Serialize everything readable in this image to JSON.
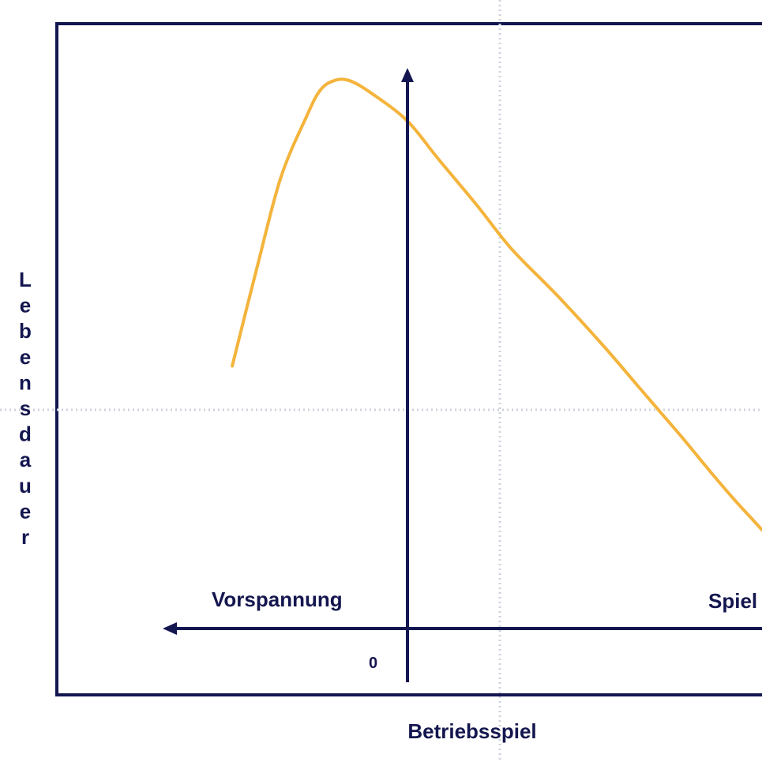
{
  "chart_data": {
    "type": "line",
    "title": "",
    "xlabel": "Betriebsspiel",
    "ylabel": "Lebensdauer",
    "left_label": "Vorspannung",
    "right_label": "Spiel",
    "origin_label": "0",
    "xlim": [
      -1.0,
      1.54
    ],
    "ylim": [
      0,
      1
    ],
    "grid": true,
    "series": [
      {
        "color": "#f4b43c",
        "x": [
          -0.76,
          -0.65,
          -0.55,
          -0.44,
          -0.38,
          -0.32,
          -0.25,
          -0.15,
          0.0,
          0.13,
          0.3,
          0.45,
          0.65,
          0.85,
          1.0,
          1.1,
          1.2,
          1.32,
          1.42,
          1.5,
          1.54
        ],
        "y": [
          0.49,
          0.64,
          0.77,
          0.86,
          0.9,
          0.915,
          0.915,
          0.895,
          0.855,
          0.8,
          0.73,
          0.665,
          0.595,
          0.52,
          0.46,
          0.42,
          0.38,
          0.33,
          0.29,
          0.26,
          0.245
        ]
      }
    ]
  },
  "colors": {
    "axis": "#14164f",
    "curve": "#f4b43c",
    "grid": "#cfd3dc",
    "text": "#14164f"
  }
}
